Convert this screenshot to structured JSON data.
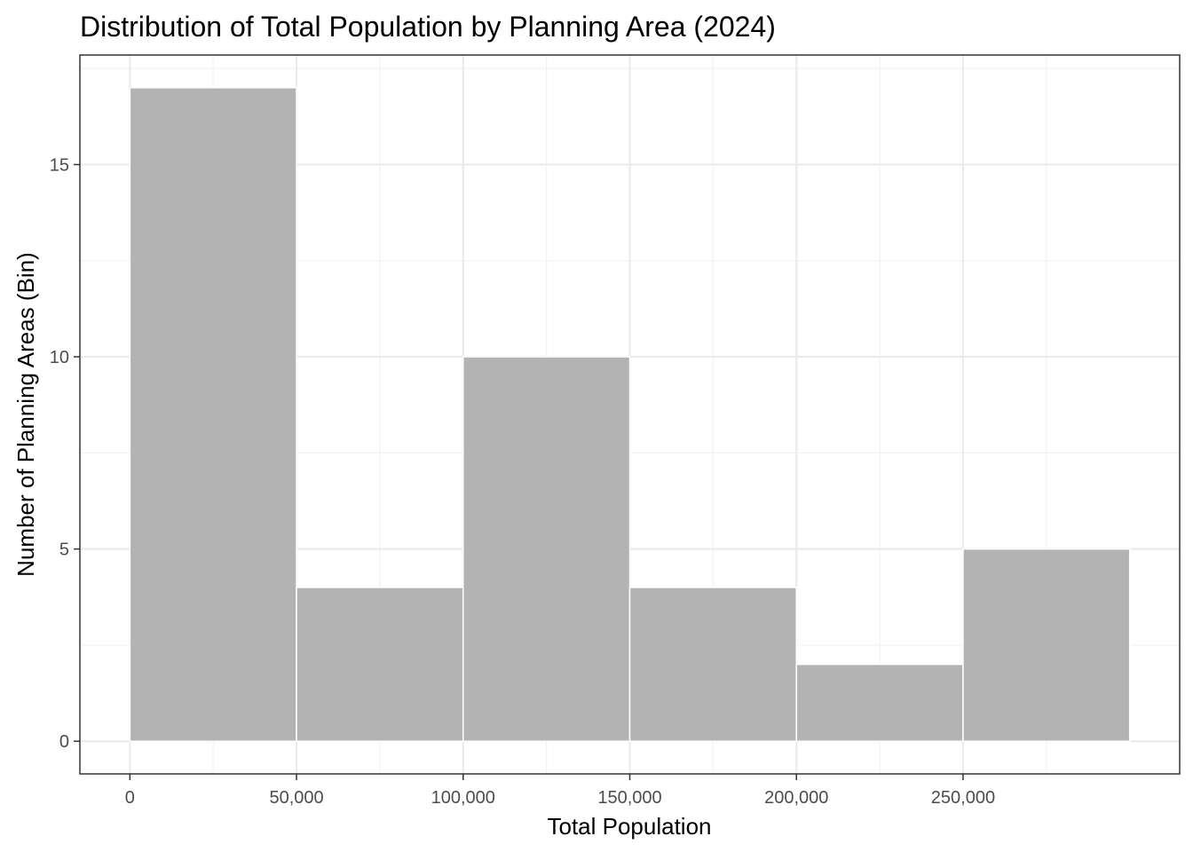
{
  "chart_data": {
    "type": "bar",
    "title": "Distribution of Total Population by Planning Area (2024)",
    "xlabel": "Total Population",
    "ylabel": "Number of Planning Areas (Bin)",
    "bins": [
      {
        "start": 0,
        "end": 50000,
        "count": 17
      },
      {
        "start": 50000,
        "end": 100000,
        "count": 4
      },
      {
        "start": 100000,
        "end": 150000,
        "count": 10
      },
      {
        "start": 150000,
        "end": 200000,
        "count": 4
      },
      {
        "start": 200000,
        "end": 250000,
        "count": 2
      },
      {
        "start": 250000,
        "end": 300000,
        "count": 5
      }
    ],
    "x_ticks": [
      0,
      50000,
      100000,
      150000,
      200000,
      250000
    ],
    "x_tick_labels": [
      "0",
      "50,000",
      "100,000",
      "150,000",
      "200,000",
      "250,000"
    ],
    "y_ticks": [
      0,
      5,
      10,
      15
    ],
    "y_tick_labels": [
      "0",
      "5",
      "10",
      "15"
    ],
    "xlim": [
      -15000,
      315000
    ],
    "ylim": [
      -0.85,
      17.85
    ],
    "grid": true,
    "legend": "none",
    "colors": {
      "bar_fill": "#b3b3b3",
      "bar_stroke": "#ffffff",
      "grid_major": "#ebebeb",
      "grid_minor": "#f2f2f2",
      "panel_border": "#333333",
      "tick_text": "#4d4d4d"
    }
  }
}
